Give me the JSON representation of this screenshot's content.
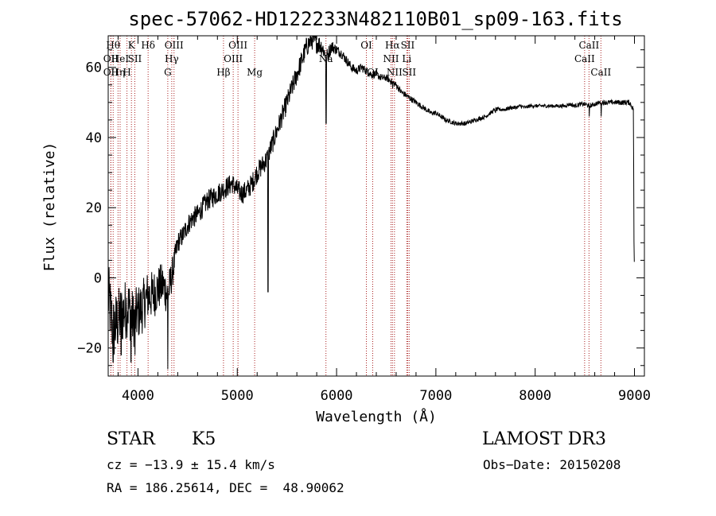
{
  "chart_data": {
    "type": "line",
    "title": "spec-57062-HD122233N482110B01_sp09-163.fits",
    "xlabel": "Wavelength (Å)",
    "ylabel": "Flux (relative)",
    "xlim": [
      3700,
      9100
    ],
    "ylim": [
      -28,
      69
    ],
    "xticks": [
      4000,
      5000,
      6000,
      7000,
      8000,
      9000
    ],
    "yticks": [
      -20,
      0,
      20,
      40,
      60
    ],
    "xtick_labels": [
      "4000",
      "5000",
      "6000",
      "7000",
      "8000",
      "9000"
    ],
    "ytick_labels": [
      "−20",
      "0",
      "20",
      "40",
      "60"
    ],
    "series": [
      {
        "name": "flux",
        "anchors": [
          [
            3700,
            -5
          ],
          [
            3750,
            -15
          ],
          [
            3800,
            -12
          ],
          [
            3850,
            -10
          ],
          [
            3900,
            -8
          ],
          [
            3950,
            -12
          ],
          [
            4000,
            -10
          ],
          [
            4050,
            -8
          ],
          [
            4100,
            -5
          ],
          [
            4150,
            -5
          ],
          [
            4200,
            -3
          ],
          [
            4250,
            -2
          ],
          [
            4300,
            -5
          ],
          [
            4350,
            2
          ],
          [
            4400,
            10
          ],
          [
            4450,
            12
          ],
          [
            4500,
            15
          ],
          [
            4550,
            17
          ],
          [
            4600,
            18
          ],
          [
            4650,
            20
          ],
          [
            4700,
            22
          ],
          [
            4750,
            23
          ],
          [
            4800,
            24
          ],
          [
            4850,
            25
          ],
          [
            4900,
            26
          ],
          [
            4950,
            27
          ],
          [
            5000,
            25
          ],
          [
            5050,
            24
          ],
          [
            5100,
            25
          ],
          [
            5150,
            27
          ],
          [
            5200,
            30
          ],
          [
            5250,
            32
          ],
          [
            5300,
            34
          ],
          [
            5350,
            38
          ],
          [
            5400,
            42
          ],
          [
            5450,
            46
          ],
          [
            5500,
            50
          ],
          [
            5550,
            54
          ],
          [
            5600,
            58
          ],
          [
            5650,
            62
          ],
          [
            5700,
            66
          ],
          [
            5750,
            68
          ],
          [
            5800,
            67
          ],
          [
            5850,
            66
          ],
          [
            5900,
            63
          ],
          [
            5950,
            66
          ],
          [
            6000,
            65
          ],
          [
            6050,
            64
          ],
          [
            6100,
            62
          ],
          [
            6150,
            60
          ],
          [
            6200,
            59
          ],
          [
            6250,
            60
          ],
          [
            6300,
            59
          ],
          [
            6350,
            58
          ],
          [
            6400,
            58
          ],
          [
            6450,
            57
          ],
          [
            6500,
            57
          ],
          [
            6550,
            56
          ],
          [
            6600,
            55
          ],
          [
            6650,
            53
          ],
          [
            6700,
            52
          ],
          [
            6750,
            51
          ],
          [
            6800,
            50
          ],
          [
            6850,
            49
          ],
          [
            6900,
            48
          ],
          [
            6950,
            47
          ],
          [
            7000,
            47
          ],
          [
            7050,
            46
          ],
          [
            7100,
            45
          ],
          [
            7150,
            44.5
          ],
          [
            7200,
            44
          ],
          [
            7250,
            44
          ],
          [
            7300,
            44
          ],
          [
            7350,
            44.5
          ],
          [
            7400,
            45
          ],
          [
            7450,
            45.5
          ],
          [
            7500,
            46
          ],
          [
            7550,
            47
          ],
          [
            7600,
            48
          ],
          [
            7650,
            48
          ],
          [
            7700,
            48
          ],
          [
            7750,
            48.5
          ],
          [
            7800,
            48.5
          ],
          [
            7850,
            49
          ],
          [
            7900,
            48.5
          ],
          [
            7950,
            49
          ],
          [
            8000,
            49
          ],
          [
            8050,
            49
          ],
          [
            8100,
            49
          ],
          [
            8150,
            49
          ],
          [
            8200,
            49
          ],
          [
            8250,
            49
          ],
          [
            8300,
            49
          ],
          [
            8350,
            49.5
          ],
          [
            8400,
            49
          ],
          [
            8450,
            49.5
          ],
          [
            8500,
            49.5
          ],
          [
            8550,
            49
          ],
          [
            8600,
            49.5
          ],
          [
            8650,
            50
          ],
          [
            8700,
            50
          ],
          [
            8750,
            50
          ],
          [
            8800,
            50
          ],
          [
            8850,
            50
          ],
          [
            8900,
            50
          ],
          [
            8950,
            50
          ],
          [
            8990,
            48
          ],
          [
            8995,
            10
          ],
          [
            9000,
            0
          ]
        ],
        "noise": [
          [
            3700,
            10
          ],
          [
            4000,
            8
          ],
          [
            4300,
            6
          ],
          [
            4400,
            3
          ],
          [
            5000,
            3
          ],
          [
            5300,
            3
          ],
          [
            5500,
            3
          ],
          [
            5800,
            3
          ],
          [
            6000,
            1.5
          ],
          [
            6500,
            1
          ],
          [
            7000,
            0.7
          ],
          [
            7500,
            0.6
          ],
          [
            8000,
            0.5
          ],
          [
            8500,
            0.6
          ],
          [
            9000,
            0.8
          ]
        ],
        "dips": [
          [
            3750,
            -24
          ],
          [
            3830,
            -22
          ],
          [
            3930,
            -24
          ],
          [
            3970,
            -22
          ],
          [
            4300,
            -26
          ],
          [
            5310,
            -4
          ],
          [
            5895,
            44
          ],
          [
            6565,
            54
          ],
          [
            7600,
            47
          ],
          [
            8545,
            46
          ],
          [
            8665,
            46
          ]
        ]
      }
    ],
    "spectral_lines": [
      {
        "wave": 3750,
        "label": "Hθ",
        "row": 0
      },
      {
        "wave": 3727,
        "label": "OII",
        "row": 1
      },
      {
        "wave": 3727,
        "label": "OII",
        "row": 2
      },
      {
        "wave": 3799,
        "label": "Hη",
        "row": 2
      },
      {
        "wave": 3820,
        "label": "HeI",
        "row": 1
      },
      {
        "wave": 3889,
        "label": "H",
        "row": 2
      },
      {
        "wave": 3934,
        "label": "K",
        "row": 0
      },
      {
        "wave": 3968,
        "label": "SII",
        "row": 1
      },
      {
        "wave": 4102,
        "label": "Hδ",
        "row": 0
      },
      {
        "wave": 4300,
        "label": "G",
        "row": 2
      },
      {
        "wave": 4340,
        "label": "Hγ",
        "row": 1
      },
      {
        "wave": 4363,
        "label": "OIII",
        "row": 0
      },
      {
        "wave": 4861,
        "label": "Hβ",
        "row": 2
      },
      {
        "wave": 4959,
        "label": "OIII",
        "row": 1
      },
      {
        "wave": 5007,
        "label": "OIII",
        "row": 0
      },
      {
        "wave": 5175,
        "label": "Mg",
        "row": 2
      },
      {
        "wave": 5893,
        "label": "Na",
        "row": 1
      },
      {
        "wave": 6300,
        "label": "OI",
        "row": 0
      },
      {
        "wave": 6364,
        "label": "OI",
        "row": 2
      },
      {
        "wave": 6548,
        "label": "NII",
        "row": 1
      },
      {
        "wave": 6563,
        "label": "Hα",
        "row": 0
      },
      {
        "wave": 6583,
        "label": "NII",
        "row": 2
      },
      {
        "wave": 6707,
        "label": "Li",
        "row": 1
      },
      {
        "wave": 6716,
        "label": "SII",
        "row": 0
      },
      {
        "wave": 6731,
        "label": "SII",
        "row": 2
      },
      {
        "wave": 8498,
        "label": "CaII",
        "row": 1
      },
      {
        "wave": 8542,
        "label": "CaII",
        "row": 0
      },
      {
        "wave": 8662,
        "label": "CaII",
        "row": 2
      }
    ]
  },
  "info": {
    "object_class": "STAR",
    "subclass": "K5",
    "survey": "LAMOST DR3",
    "redshift": "cz = −13.9 ± 15.4 km/s",
    "obs_date": "Obs−Date: 20150208",
    "coords": "RA = 186.25614, DEC =  48.90062"
  },
  "colors": {
    "line_marker": "#aa2222",
    "spectrum": "#000000",
    "axis": "#000000"
  }
}
